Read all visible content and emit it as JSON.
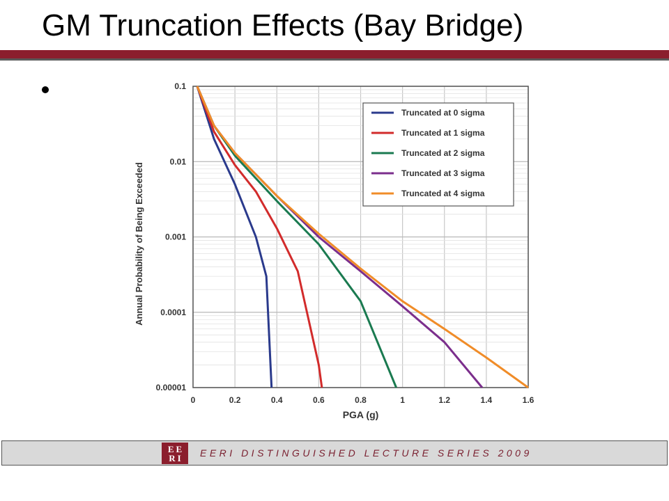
{
  "slide": {
    "title": "GM Truncation Effects (Bay Bridge)",
    "accent_color": "#8b1e2d"
  },
  "footer": {
    "text": "EERI DISTINGUISHED LECTURE SERIES 2009",
    "logo_top": "EE",
    "logo_bottom": "RI"
  },
  "chart_data": {
    "type": "line",
    "xlabel": "PGA (g)",
    "ylabel": "Annual Probability of Being Exceeded",
    "xlim": [
      0,
      1.6
    ],
    "ylim": [
      1e-05,
      0.1
    ],
    "y_scale": "log",
    "grid": true,
    "legend_position": "top-right",
    "x_ticks": [
      "0",
      "0.2",
      "0.4",
      "0.6",
      "0.8",
      "1",
      "1.2",
      "1.4",
      "1.6"
    ],
    "y_ticks": [
      "0.1",
      "0.01",
      "0.001",
      "0.0001",
      "0.00001"
    ],
    "series": [
      {
        "name": "Truncated at 0 sigma",
        "color": "#2a3a8c",
        "x": [
          0.02,
          0.1,
          0.2,
          0.3,
          0.35,
          0.375
        ],
        "y": [
          0.1,
          0.02,
          0.005,
          0.001,
          0.0003,
          1e-05
        ]
      },
      {
        "name": "Truncated at 1 sigma",
        "color": "#d22b2b",
        "x": [
          0.02,
          0.1,
          0.2,
          0.3,
          0.4,
          0.5,
          0.6,
          0.615
        ],
        "y": [
          0.1,
          0.025,
          0.009,
          0.004,
          0.0013,
          0.00035,
          2e-05,
          1e-05
        ]
      },
      {
        "name": "Truncated at 2 sigma",
        "color": "#1a7a50",
        "x": [
          0.02,
          0.1,
          0.2,
          0.4,
          0.6,
          0.8,
          0.97
        ],
        "y": [
          0.1,
          0.03,
          0.012,
          0.003,
          0.0008,
          0.00014,
          1e-05
        ]
      },
      {
        "name": "Truncated at 3 sigma",
        "color": "#7b2e8c",
        "x": [
          0.02,
          0.1,
          0.2,
          0.4,
          0.6,
          0.8,
          1.0,
          1.2,
          1.38
        ],
        "y": [
          0.1,
          0.03,
          0.013,
          0.0035,
          0.001,
          0.00035,
          0.00012,
          4e-05,
          1e-05
        ]
      },
      {
        "name": "Truncated at 4 sigma",
        "color": "#f08c28",
        "x": [
          0.02,
          0.1,
          0.2,
          0.4,
          0.6,
          0.8,
          1.0,
          1.2,
          1.4,
          1.6
        ],
        "y": [
          0.1,
          0.03,
          0.013,
          0.0035,
          0.0011,
          0.00038,
          0.00014,
          6e-05,
          2.5e-05,
          1e-05
        ]
      }
    ]
  }
}
